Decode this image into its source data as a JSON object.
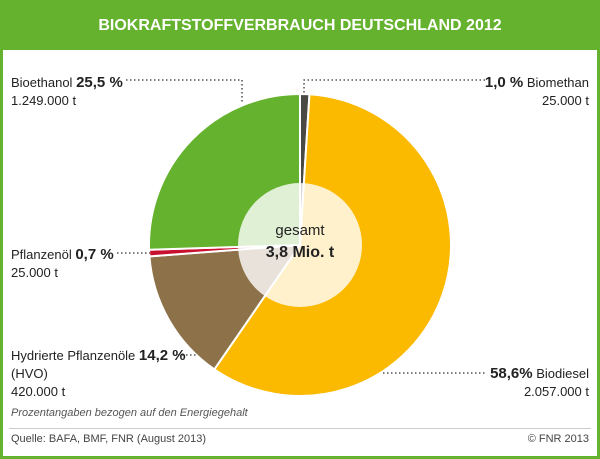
{
  "chart_data": {
    "type": "pie",
    "title": "BIOKRAFTSTOFFVERBRAUCH DEUTSCHLAND 2012",
    "center_label": {
      "line1": "gesamt",
      "line2": "3,8 Mio. t"
    },
    "slices": [
      {
        "name": "Biomethan",
        "percent": 1.0,
        "percent_label": "1,0 %",
        "amount": "25.000 t",
        "color": "#4a4944"
      },
      {
        "name": "Biodiesel",
        "percent": 58.6,
        "percent_label": "58,6%",
        "amount": "2.057.000 t",
        "color": "#fbb900"
      },
      {
        "name": "Hydrierte Pflanzenöle",
        "name2": "(HVO)",
        "percent": 14.2,
        "percent_label": "14,2 %",
        "amount": "420.000 t",
        "color": "#8d7149"
      },
      {
        "name": "Pflanzenöl",
        "percent": 0.7,
        "percent_label": "0,7 %",
        "amount": "25.000 t",
        "color": "#c8102e"
      },
      {
        "name": "Bioethanol",
        "percent": 25.5,
        "percent_label": "25,5 %",
        "amount": "1.249.000 t",
        "color": "#64b22e"
      }
    ],
    "note": "Prozentangaben bezogen auf den Energiegehalt",
    "source": "Quelle: BAFA, BMF, FNR (August 2013)",
    "copyright": "© FNR 2013"
  }
}
